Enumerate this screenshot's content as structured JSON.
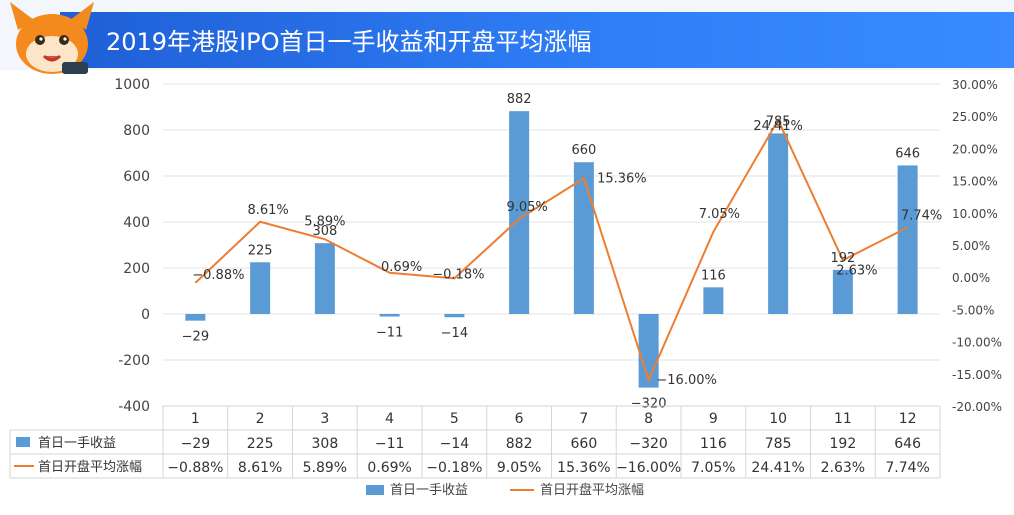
{
  "header": {
    "title": "2019年港股IPO首日一手收益和开盘平均涨幅"
  },
  "colors": {
    "bar": "#5b9bd5",
    "line": "#ed7d31",
    "header": "#2f7df5"
  },
  "icons": {
    "mascot": "fox-mascot-icon"
  },
  "chart_data": {
    "type": "bar",
    "title": "2019年港股IPO首日一手收益和开盘平均涨幅",
    "categories": [
      "1",
      "2",
      "3",
      "4",
      "5",
      "6",
      "7",
      "8",
      "9",
      "10",
      "11",
      "12"
    ],
    "y_left": {
      "lim": [
        -400,
        1000
      ],
      "ticks": [
        "1000",
        "800",
        "600",
        "400",
        "200",
        "0",
        "-200",
        "-400"
      ]
    },
    "y_right": {
      "lim": [
        -20,
        30
      ],
      "ticks": [
        "30.00%",
        "25.00%",
        "20.00%",
        "15.00%",
        "10.00%",
        "5.00%",
        "0.00%",
        "-5.00%",
        "-10.00%",
        "-15.00%",
        "-20.00%"
      ]
    },
    "grid": true,
    "legend_placement": "bottom",
    "series": [
      {
        "name": "首日一手收益",
        "type": "bar",
        "axis": "left",
        "values": [
          -29,
          225,
          308,
          -11,
          -14,
          882,
          660,
          -320,
          116,
          785,
          192,
          646
        ],
        "labels": [
          "−29",
          "225",
          "308",
          "−11",
          "−14",
          "882",
          "660",
          "−320",
          "116",
          "785",
          "192",
          "646"
        ]
      },
      {
        "name": "首日开盘平均涨幅",
        "type": "line",
        "axis": "right",
        "values": [
          -0.88,
          8.61,
          5.89,
          0.69,
          -0.18,
          9.05,
          15.36,
          -16.0,
          7.05,
          24.41,
          2.63,
          7.74
        ],
        "labels": [
          "−0.88%",
          "8.61%",
          "5.89%",
          "0.69%",
          "−0.18%",
          "9.05%",
          "15.36%",
          "−16.00%",
          "7.05%",
          "24.41%",
          "2.63%",
          "7.74%"
        ]
      }
    ],
    "table": {
      "rows": [
        {
          "label": "首日一手收益",
          "cells": [
            "−29",
            "225",
            "308",
            "−11",
            "−14",
            "882",
            "660",
            "−320",
            "116",
            "785",
            "192",
            "646"
          ]
        },
        {
          "label": "首日开盘平均涨幅",
          "cells": [
            "−0.88%",
            "8.61%",
            "5.89%",
            "0.69%",
            "−0.18%",
            "9.05%",
            "15.36%",
            "−16.00%",
            "7.05%",
            "24.41%",
            "2.63%",
            "7.74%"
          ]
        }
      ]
    }
  }
}
